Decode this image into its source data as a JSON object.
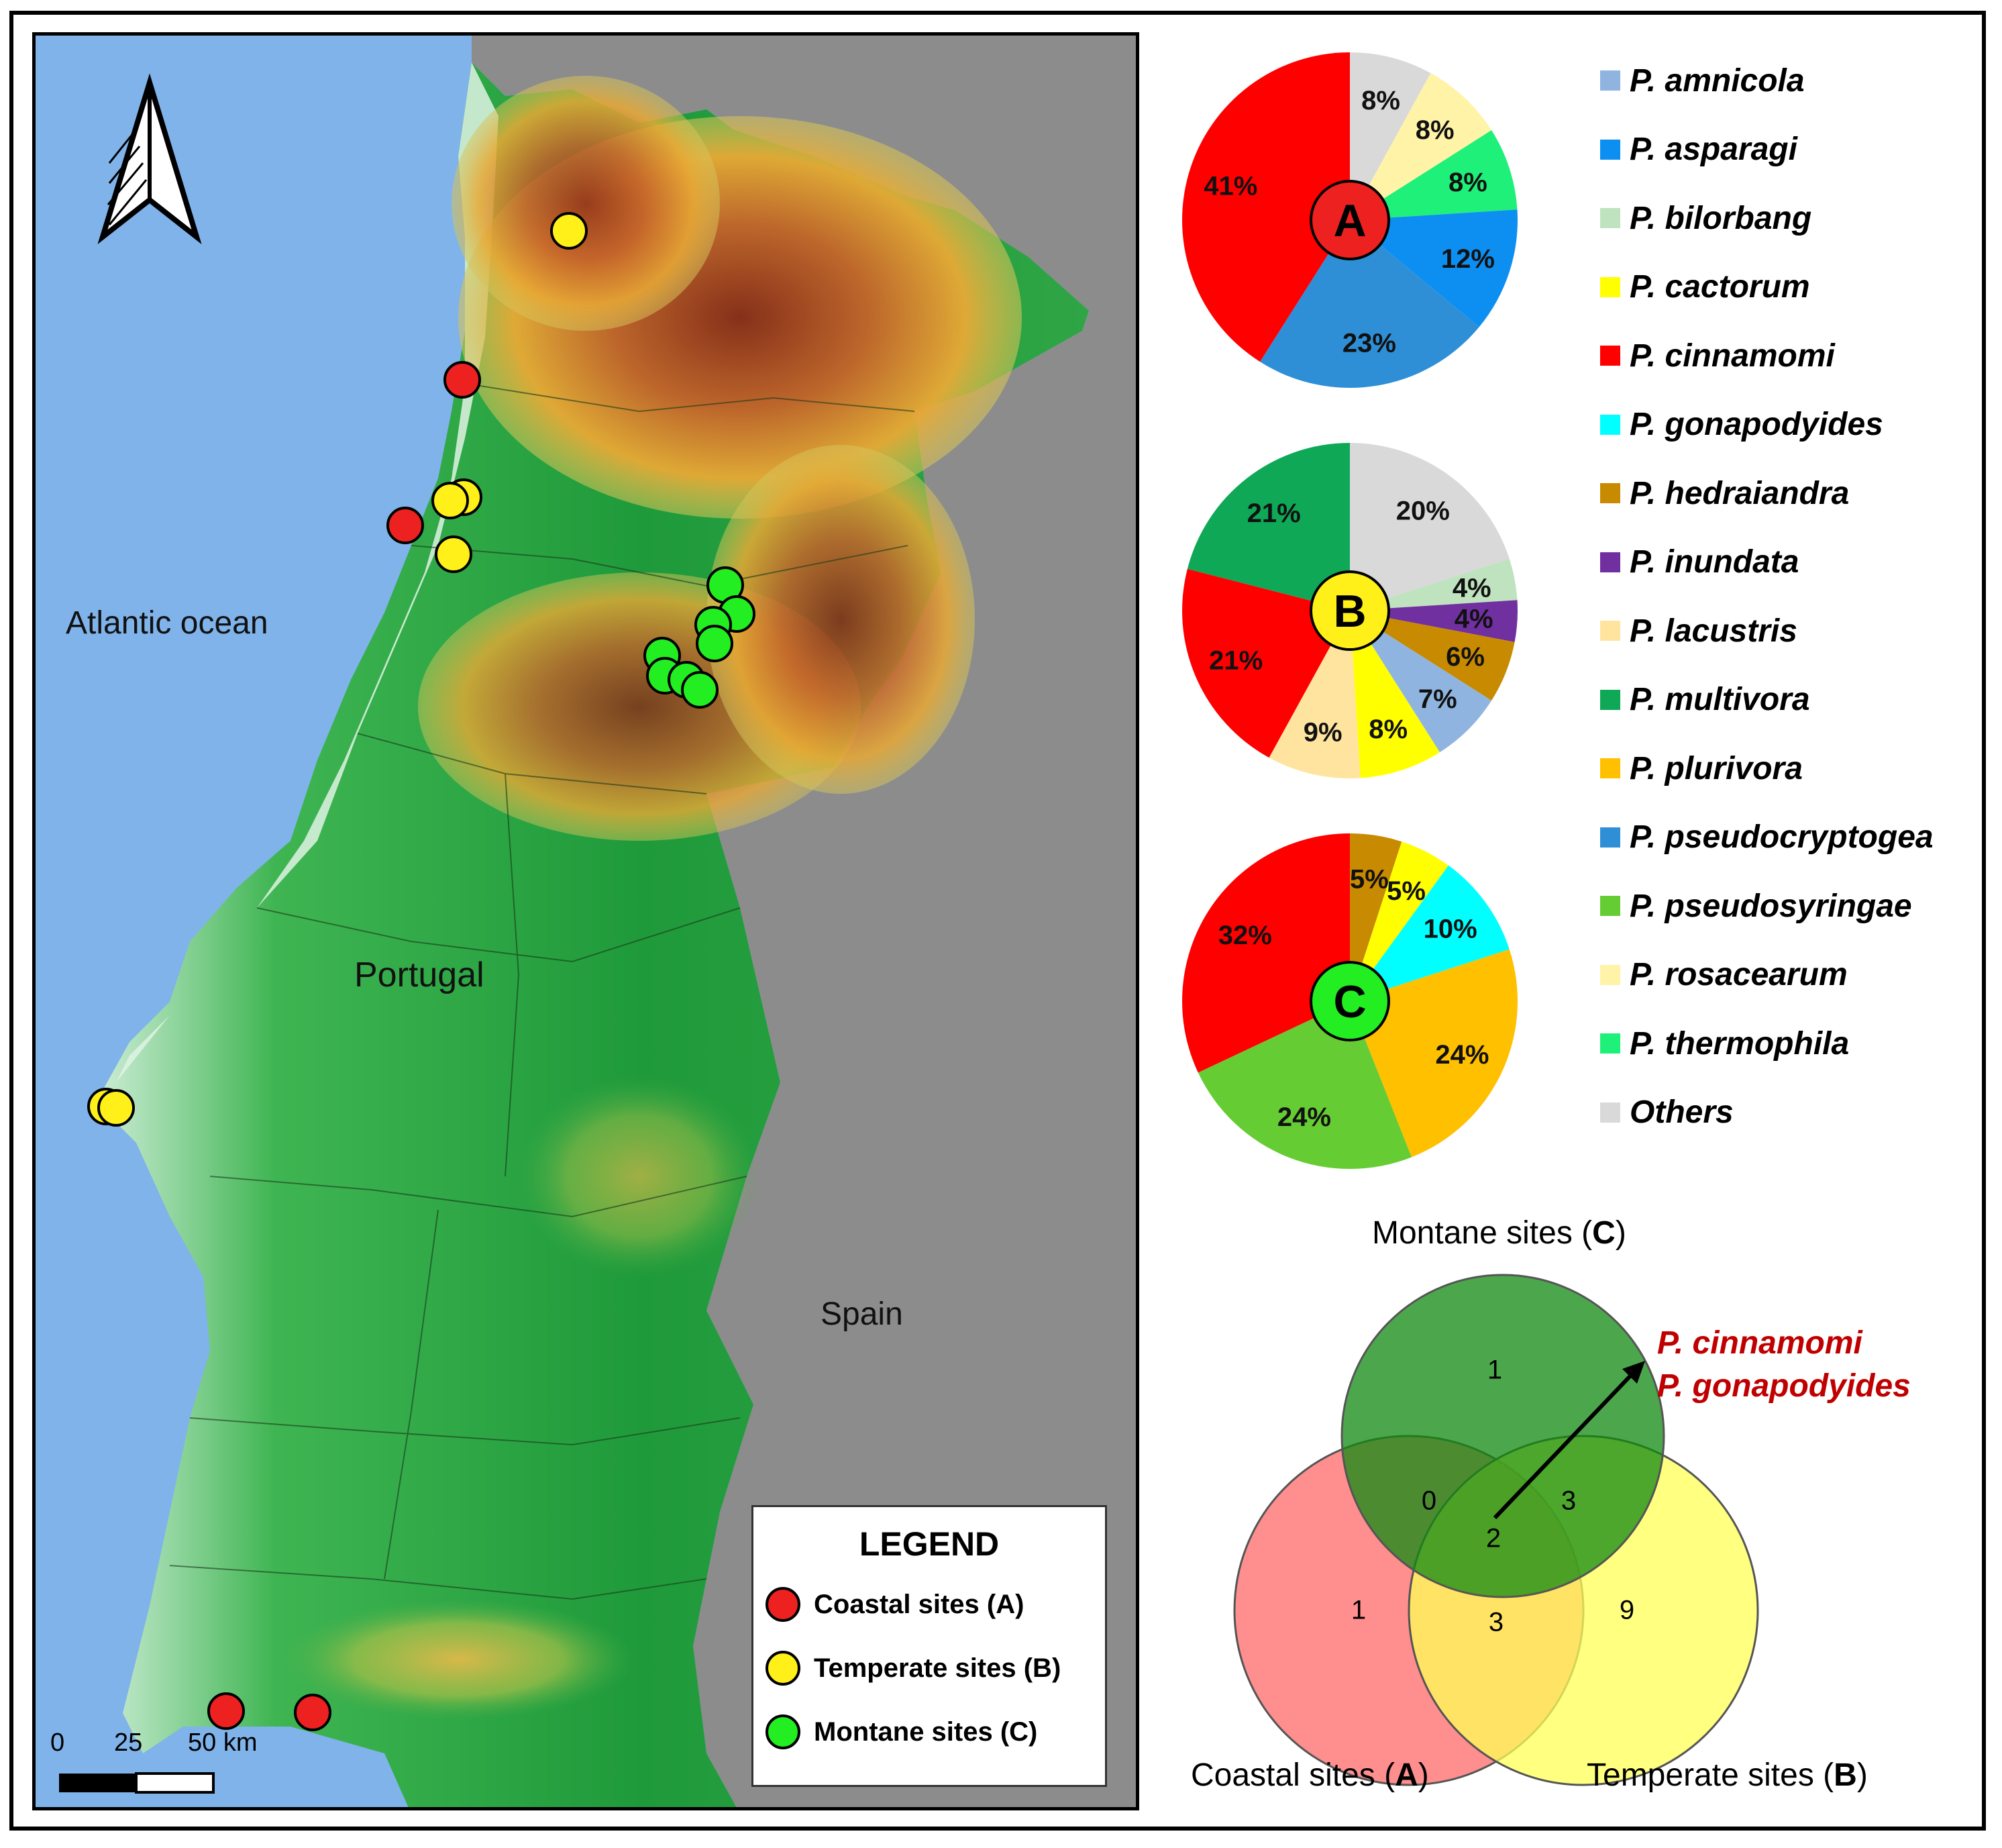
{
  "map": {
    "labels": {
      "atlantic": "Atlantic ocean",
      "portugal": "Portugal",
      "spain": "Spain"
    },
    "north_arrow_icon": "north-arrow-icon",
    "scale_bar": {
      "labels": [
        "0",
        "25",
        "50 km"
      ]
    },
    "colors": {
      "ocean": "#7fb3ea",
      "spain": "#8c8c8c",
      "lowland": "#1e9a3a",
      "coast": "#d9efe0",
      "upland": "#e5a623",
      "mountain": "#8b3a1e"
    },
    "site_groups": [
      {
        "id": "A",
        "color": "#ee2121"
      },
      {
        "id": "B",
        "color": "#fff01a"
      },
      {
        "id": "C",
        "color": "#22ee22"
      }
    ]
  },
  "legend": {
    "title": "LEGEND",
    "items": [
      {
        "label": "Coastal sites (A)",
        "color": "#ee2121"
      },
      {
        "label": "Temperate sites (B)",
        "color": "#fff01a"
      },
      {
        "label": "Montane sites (C)",
        "color": "#22ee22"
      }
    ]
  },
  "species_legend": [
    {
      "name": "P. amnicola",
      "color": "#8fb4e0"
    },
    {
      "name": "P. asparagi",
      "color": "#0d8ff2"
    },
    {
      "name": "P. bilorbang",
      "color": "#bfe3bf"
    },
    {
      "name": "P. cactorum",
      "color": "#ffff00"
    },
    {
      "name": "P. cinnamomi",
      "color": "#ff0000"
    },
    {
      "name": "P. gonapodyides",
      "color": "#00ffff"
    },
    {
      "name": "P. hedraiandra",
      "color": "#c88a00"
    },
    {
      "name": "P. inundata",
      "color": "#7030a0"
    },
    {
      "name": "P. lacustris",
      "color": "#ffe4a0"
    },
    {
      "name": "P. multivora",
      "color": "#0ea856"
    },
    {
      "name": "P. plurivora",
      "color": "#ffc000"
    },
    {
      "name": "P. pseudocryptogea",
      "color": "#2e8fd6"
    },
    {
      "name": "P. pseudosyringae",
      "color": "#66cc33"
    },
    {
      "name": "P. rosacearum",
      "color": "#fff3a8"
    },
    {
      "name": "P. thermophila",
      "color": "#1ff07a"
    },
    {
      "name": "Others",
      "color": "#d9d9d9"
    }
  ],
  "chart_data": [
    {
      "type": "pie",
      "center_label": "A",
      "center_color": "#ee2121",
      "slices": [
        {
          "species": "Others",
          "value": 8,
          "label": "8%",
          "color": "#d9d9d9"
        },
        {
          "species": "P. rosacearum",
          "value": 8,
          "label": "8%",
          "color": "#fff3a8"
        },
        {
          "species": "P. thermophila",
          "value": 8,
          "label": "8%",
          "color": "#1ff07a"
        },
        {
          "species": "P. asparagi",
          "value": 12,
          "label": "12%",
          "color": "#0d8ff2"
        },
        {
          "species": "P. pseudocryptogea",
          "value": 23,
          "label": "23%",
          "color": "#2e8fd6"
        },
        {
          "species": "P. cinnamomi",
          "value": 41,
          "label": "41%",
          "color": "#ff0000"
        }
      ]
    },
    {
      "type": "pie",
      "center_label": "B",
      "center_color": "#fff01a",
      "slices": [
        {
          "species": "Others",
          "value": 20,
          "label": "20%",
          "color": "#d9d9d9"
        },
        {
          "species": "P. bilorbang",
          "value": 4,
          "label": "4%",
          "color": "#bfe3bf"
        },
        {
          "species": "P. inundata",
          "value": 4,
          "label": "4%",
          "color": "#7030a0"
        },
        {
          "species": "P. hedraiandra",
          "value": 6,
          "label": "6%",
          "color": "#c88a00"
        },
        {
          "species": "P. amnicola",
          "value": 7,
          "label": "7%",
          "color": "#8fb4e0"
        },
        {
          "species": "P. cactorum",
          "value": 8,
          "label": "8%",
          "color": "#ffff00"
        },
        {
          "species": "P. lacustris",
          "value": 9,
          "label": "9%",
          "color": "#ffe4a0"
        },
        {
          "species": "P. cinnamomi",
          "value": 21,
          "label": "21%",
          "color": "#ff0000"
        },
        {
          "species": "P. multivora",
          "value": 21,
          "label": "21%",
          "color": "#0ea856"
        }
      ]
    },
    {
      "type": "pie",
      "center_label": "C",
      "center_color": "#22ee22",
      "slices": [
        {
          "species": "P. hedraiandra",
          "value": 5,
          "label": "5%",
          "color": "#c88a00"
        },
        {
          "species": "P. cactorum",
          "value": 5,
          "label": "5%",
          "color": "#ffff00"
        },
        {
          "species": "P. gonapodyides",
          "value": 10,
          "label": "10%",
          "color": "#00ffff"
        },
        {
          "species": "P. plurivora",
          "value": 24,
          "label": "24%",
          "color": "#ffc000"
        },
        {
          "species": "P. pseudosyringae",
          "value": 24,
          "label": "24%",
          "color": "#66cc33"
        },
        {
          "species": "P. cinnamomi",
          "value": 32,
          "label": "32%",
          "color": "#ff0000"
        }
      ]
    }
  ],
  "venn": {
    "sets": {
      "C": {
        "label_prefix": "Montane sites (",
        "letter": "C",
        "label_suffix": ")",
        "color": "#108a10"
      },
      "A": {
        "label_prefix": "Coastal sites (",
        "letter": "A",
        "label_suffix": ")",
        "color": "#ff7a7a"
      },
      "B": {
        "label_prefix": "Temperate sites (",
        "letter": "B",
        "label_suffix": ")",
        "color": "#ffff66"
      }
    },
    "counts": {
      "C_only": "1",
      "A_only": "1",
      "B_only": "9",
      "AC": "0",
      "BC": "3",
      "AB": "3",
      "ABC": "2"
    },
    "shared_species": [
      "P. cinnamomi",
      "P. gonapodyides"
    ]
  }
}
